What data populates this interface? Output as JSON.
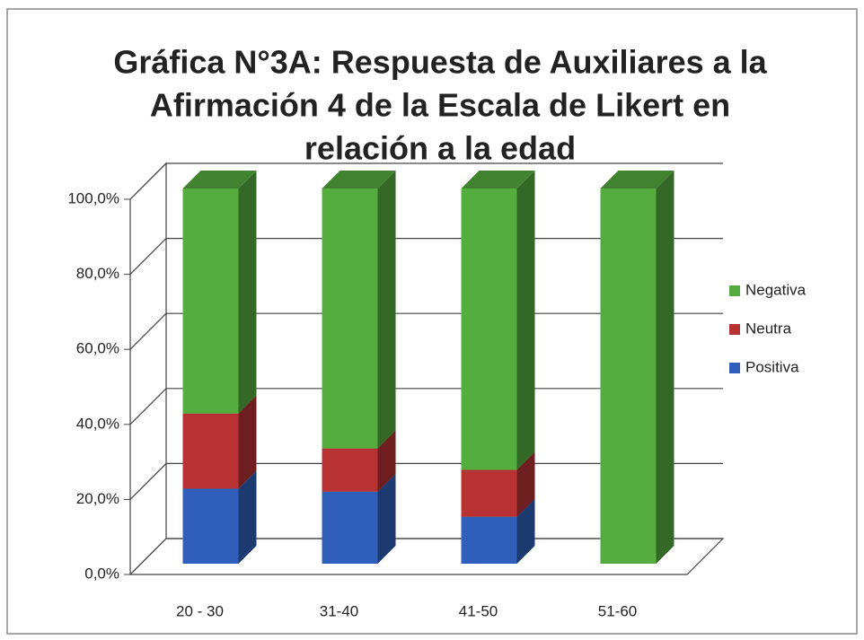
{
  "chart_data": {
    "type": "bar3d_stacked",
    "title": [
      "Gráfica N°3A: Respuesta de Auxiliares a la",
      "Afirmación 4 de la Escala de Likert en",
      "relación a la edad"
    ],
    "categories": [
      "20 - 30",
      "31-40",
      "41-50",
      "51-60"
    ],
    "series": [
      {
        "name": "Positiva",
        "color": "#2f5fba",
        "values": [
          20,
          19.2,
          12.5,
          0
        ]
      },
      {
        "name": "Neutra",
        "color": "#b83234",
        "values": [
          20,
          11.5,
          12.5,
          0
        ]
      },
      {
        "name": "Negativa",
        "color": "#55ad40",
        "values": [
          60,
          69.3,
          75,
          100
        ]
      }
    ],
    "ylim": [
      0,
      100
    ],
    "yticks": [
      {
        "value": 0,
        "label": "0,0%"
      },
      {
        "value": 20,
        "label": "20,0%"
      },
      {
        "value": 40,
        "label": "40,0%"
      },
      {
        "value": 60,
        "label": "60,0%"
      },
      {
        "value": 80,
        "label": "80,0%"
      },
      {
        "value": 100,
        "label": "100,0%"
      }
    ],
    "grid": true,
    "legend": "right"
  }
}
